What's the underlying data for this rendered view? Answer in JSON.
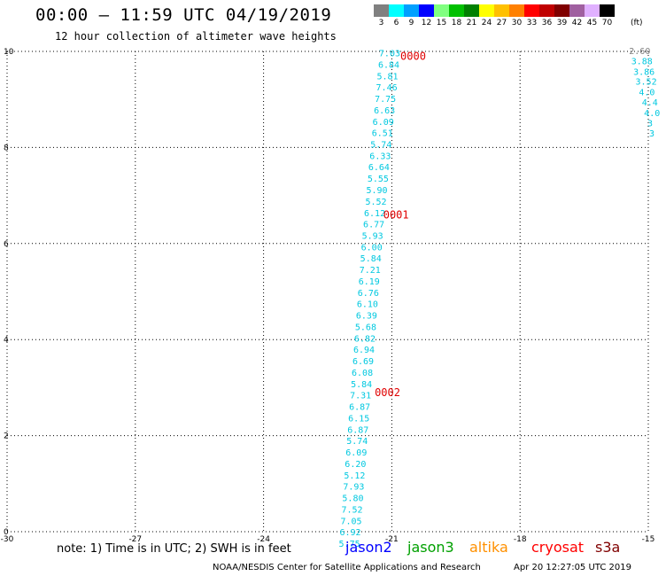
{
  "header": {
    "title": "00:00 – 11:59 UTC 04/19/2019",
    "subtitle": "12 hour collection of altimeter wave heights"
  },
  "color_scale": {
    "unit": "(ft)",
    "bins": [
      {
        "label": "3",
        "color": "#808080"
      },
      {
        "label": "6",
        "color": "#00ffff"
      },
      {
        "label": "9",
        "color": "#00a0ff"
      },
      {
        "label": "12",
        "color": "#0000ff"
      },
      {
        "label": "15",
        "color": "#80ff80"
      },
      {
        "label": "18",
        "color": "#00c000"
      },
      {
        "label": "21",
        "color": "#008000"
      },
      {
        "label": "24",
        "color": "#ffff00"
      },
      {
        "label": "27",
        "color": "#ffc000"
      },
      {
        "label": "30",
        "color": "#ff8000"
      },
      {
        "label": "33",
        "color": "#ff0000"
      },
      {
        "label": "36",
        "color": "#c00000"
      },
      {
        "label": "39",
        "color": "#800000"
      },
      {
        "label": "42",
        "color": "#a060a0"
      },
      {
        "label": "45",
        "color": "#e0b0ff"
      },
      {
        "label": "70",
        "color": "#000000"
      }
    ]
  },
  "chart_data": {
    "type": "scatter",
    "xlim": [
      -30,
      -15
    ],
    "ylim": [
      0,
      10
    ],
    "x_ticks": [
      "-30",
      "-27",
      "-24",
      "-21",
      "-18",
      "-15"
    ],
    "y_ticks": [
      "0",
      "2",
      "4",
      "6",
      "8",
      "10"
    ],
    "grid": true,
    "track_labels": [
      {
        "label": "0000",
        "x": -20.8,
        "y": 9.9
      },
      {
        "label": "0001",
        "x": -21.2,
        "y": 6.6
      },
      {
        "label": "0002",
        "x": -21.4,
        "y": 2.9
      }
    ],
    "series": [
      {
        "color": "#00c8e0",
        "points": [
          {
            "x": -21.3,
            "y": 9.95,
            "v": "7.03"
          },
          {
            "x": -21.32,
            "y": 9.71,
            "v": "6.84"
          },
          {
            "x": -21.35,
            "y": 9.47,
            "v": "5.81"
          },
          {
            "x": -21.37,
            "y": 9.24,
            "v": "7.46"
          },
          {
            "x": -21.4,
            "y": 9.0,
            "v": "7.75"
          },
          {
            "x": -21.42,
            "y": 8.76,
            "v": "6.63"
          },
          {
            "x": -21.45,
            "y": 8.52,
            "v": "6.09"
          },
          {
            "x": -21.47,
            "y": 8.29,
            "v": "6.51"
          },
          {
            "x": -21.5,
            "y": 8.05,
            "v": "5.74"
          },
          {
            "x": -21.52,
            "y": 7.81,
            "v": "6.33"
          },
          {
            "x": -21.55,
            "y": 7.58,
            "v": "6.64"
          },
          {
            "x": -21.57,
            "y": 7.34,
            "v": "5.55"
          },
          {
            "x": -21.6,
            "y": 7.1,
            "v": "5.90"
          },
          {
            "x": -21.62,
            "y": 6.86,
            "v": "5.52"
          },
          {
            "x": -21.65,
            "y": 6.62,
            "v": "6.12"
          },
          {
            "x": -21.67,
            "y": 6.39,
            "v": "6.77"
          },
          {
            "x": -21.7,
            "y": 6.15,
            "v": "5.93"
          },
          {
            "x": -21.72,
            "y": 5.91,
            "v": "6.00"
          },
          {
            "x": -21.74,
            "y": 5.68,
            "v": "5.84"
          },
          {
            "x": -21.76,
            "y": 5.44,
            "v": "7.21"
          },
          {
            "x": -21.78,
            "y": 5.2,
            "v": "6.19"
          },
          {
            "x": -21.8,
            "y": 4.96,
            "v": "6.76"
          },
          {
            "x": -21.82,
            "y": 4.73,
            "v": "6.10"
          },
          {
            "x": -21.84,
            "y": 4.49,
            "v": "6.39"
          },
          {
            "x": -21.86,
            "y": 4.25,
            "v": "5.68"
          },
          {
            "x": -21.88,
            "y": 4.01,
            "v": "6.82"
          },
          {
            "x": -21.9,
            "y": 3.78,
            "v": "6.94"
          },
          {
            "x": -21.92,
            "y": 3.54,
            "v": "6.69"
          },
          {
            "x": -21.94,
            "y": 3.3,
            "v": "6.08"
          },
          {
            "x": -21.96,
            "y": 3.06,
            "v": "5.84"
          },
          {
            "x": -21.98,
            "y": 2.83,
            "v": "7.31"
          },
          {
            "x": -22.0,
            "y": 2.59,
            "v": "6.87"
          },
          {
            "x": -22.02,
            "y": 2.35,
            "v": "6.15"
          },
          {
            "x": -22.04,
            "y": 2.11,
            "v": "6.87"
          },
          {
            "x": -22.06,
            "y": 1.88,
            "v": "5.74"
          },
          {
            "x": -22.08,
            "y": 1.64,
            "v": "6.09"
          },
          {
            "x": -22.1,
            "y": 1.4,
            "v": "6.20"
          },
          {
            "x": -22.12,
            "y": 1.16,
            "v": "5.12"
          },
          {
            "x": -22.14,
            "y": 0.93,
            "v": "7.93"
          },
          {
            "x": -22.16,
            "y": 0.69,
            "v": "5.80"
          },
          {
            "x": -22.18,
            "y": 0.45,
            "v": "7.52"
          },
          {
            "x": -22.2,
            "y": 0.21,
            "v": "7.05"
          },
          {
            "x": -22.22,
            "y": -0.02,
            "v": "6.92"
          },
          {
            "x": -22.24,
            "y": -0.26,
            "v": "5.75"
          }
        ]
      },
      {
        "color": "#00c8e0",
        "points": [
          {
            "x": -15.45,
            "y": 10.0,
            "v": "2.60",
            "color": "#808080"
          },
          {
            "x": -15.4,
            "y": 9.79,
            "v": "3.88"
          },
          {
            "x": -15.35,
            "y": 9.57,
            "v": "3.86"
          },
          {
            "x": -15.3,
            "y": 9.36,
            "v": "3.52"
          },
          {
            "x": -15.22,
            "y": 9.14,
            "v": "4.0"
          },
          {
            "x": -15.15,
            "y": 8.93,
            "v": "4.4"
          },
          {
            "x": -15.1,
            "y": 8.71,
            "v": "4.0"
          },
          {
            "x": -15.02,
            "y": 8.5,
            "v": "3"
          },
          {
            "x": -14.98,
            "y": 8.28,
            "v": "3"
          }
        ]
      }
    ]
  },
  "note": "note: 1) Time is in UTC; 2) SWH is in feet",
  "satellites": [
    {
      "name": "jason2",
      "color": "#0000ff"
    },
    {
      "name": "jason3",
      "color": "#00a000"
    },
    {
      "name": "altika",
      "color": "#ff9000"
    },
    {
      "name": "cryosat",
      "color": "#ff0000"
    },
    {
      "name": "s3a",
      "color": "#800000"
    }
  ],
  "footer": {
    "credit": "NOAA/NESDIS Center for Satellite Applications and Research",
    "timestamp": "Apr 20 12:27:05 UTC 2019"
  }
}
